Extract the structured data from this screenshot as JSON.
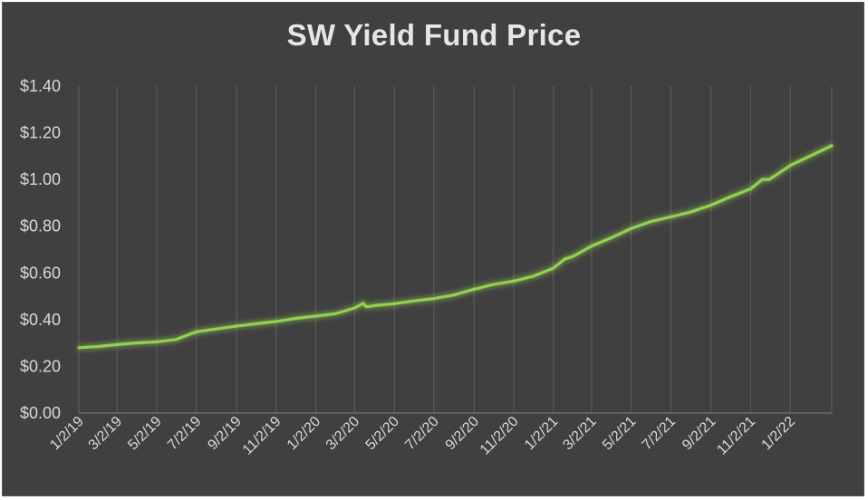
{
  "chart_data": {
    "type": "line",
    "title": "SW Yield Fund Price",
    "xlabel": "",
    "ylabel": "",
    "ylim": [
      0,
      1.4
    ],
    "y_ticks": [
      "$0.00",
      "$0.20",
      "$0.40",
      "$0.60",
      "$0.80",
      "$1.00",
      "$1.20",
      "$1.40"
    ],
    "x_ticks": [
      "1/2/19",
      "3/2/19",
      "5/2/19",
      "7/2/19",
      "9/2/19",
      "11/2/19",
      "1/2/20",
      "3/2/20",
      "5/2/20",
      "7/2/20",
      "9/2/20",
      "11/2/20",
      "1/2/21",
      "3/2/21",
      "5/2/21",
      "7/2/21",
      "9/2/21",
      "11/2/21",
      "1/2/22"
    ],
    "xlim": [
      "2019-01-02",
      "2022-03-07"
    ],
    "grid": "vertical",
    "legend": "none",
    "line_color": "#92d050",
    "background_color": "#404040",
    "series": [
      {
        "x": [
          "2019-01-02",
          "2019-02-01",
          "2019-03-02",
          "2019-04-01",
          "2019-05-02",
          "2019-06-01",
          "2019-06-15",
          "2019-07-02",
          "2019-08-01",
          "2019-09-02",
          "2019-10-01",
          "2019-11-02",
          "2019-12-01",
          "2020-01-02",
          "2020-02-01",
          "2020-03-02",
          "2020-03-15",
          "2020-03-20",
          "2020-04-01",
          "2020-05-02",
          "2020-06-01",
          "2020-07-02",
          "2020-08-01",
          "2020-09-02",
          "2020-10-01",
          "2020-11-02",
          "2020-12-01",
          "2021-01-02",
          "2021-01-20",
          "2021-02-01",
          "2021-03-02",
          "2021-04-01",
          "2021-05-02",
          "2021-06-01",
          "2021-07-02",
          "2021-08-01",
          "2021-09-02",
          "2021-10-01",
          "2021-11-02",
          "2021-11-20",
          "2021-12-01",
          "2022-01-02",
          "2022-02-01",
          "2022-03-07"
        ],
        "y": [
          0.28,
          0.285,
          0.293,
          0.3,
          0.305,
          0.315,
          0.33,
          0.348,
          0.36,
          0.372,
          0.382,
          0.392,
          0.405,
          0.415,
          0.425,
          0.45,
          0.47,
          0.455,
          0.46,
          0.468,
          0.48,
          0.49,
          0.505,
          0.53,
          0.55,
          0.565,
          0.585,
          0.62,
          0.66,
          0.67,
          0.715,
          0.75,
          0.79,
          0.82,
          0.84,
          0.86,
          0.89,
          0.925,
          0.96,
          1.0,
          1.0,
          1.06,
          1.1,
          1.145
        ]
      }
    ]
  }
}
